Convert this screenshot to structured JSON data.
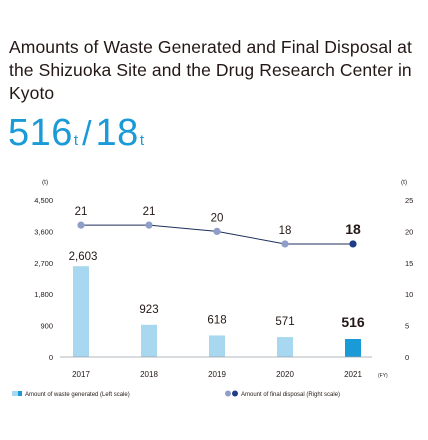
{
  "title": "Amounts of Waste Generated and Final Disposal at the Shizuoka Site and the Drug Research Center in Kyoto",
  "headline": {
    "value_generated": "516",
    "unit_generated": "t",
    "separator": "/",
    "value_disposal": "18",
    "unit_disposal": "t"
  },
  "colors": {
    "bar": "#a8d8f0",
    "bar_highlight": "#1a9ad6",
    "line": "#1c2f5c",
    "marker": "#8e9ec7",
    "marker_highlight": "#1f3c88",
    "headline": "#1a9ad6"
  },
  "chart_data": {
    "type": "bar",
    "categories": [
      "2017",
      "2018",
      "2019",
      "2020",
      "2021"
    ],
    "x_unit": "(FY)",
    "series": [
      {
        "name": "Amount of waste generated (Left scale)",
        "type": "bar",
        "axis": "left",
        "values": [
          2603,
          923,
          618,
          571,
          516
        ],
        "labels": [
          "2,603",
          "923",
          "618",
          "571",
          "516"
        ]
      },
      {
        "name": "Amount of final disposal (Right scale)",
        "type": "line",
        "axis": "right",
        "values": [
          21,
          21,
          20,
          18,
          18
        ],
        "labels": [
          "21",
          "21",
          "20",
          "18",
          "18"
        ]
      }
    ],
    "left_axis": {
      "unit": "(t)",
      "ylim": [
        0,
        4500
      ],
      "ticks": [
        0,
        900,
        1800,
        2700,
        3600,
        4500
      ],
      "tick_labels": [
        "0",
        "900",
        "1,800",
        "2,700",
        "3,600",
        "4,500"
      ]
    },
    "right_axis": {
      "unit": "(t)",
      "ylim": [
        0,
        25
      ],
      "ticks": [
        0,
        5,
        10,
        15,
        20,
        25
      ],
      "tick_labels": [
        "0",
        "5",
        "10",
        "15",
        "20",
        "25"
      ]
    },
    "highlight_index": 4,
    "grid": false,
    "legend_position": "bottom"
  }
}
